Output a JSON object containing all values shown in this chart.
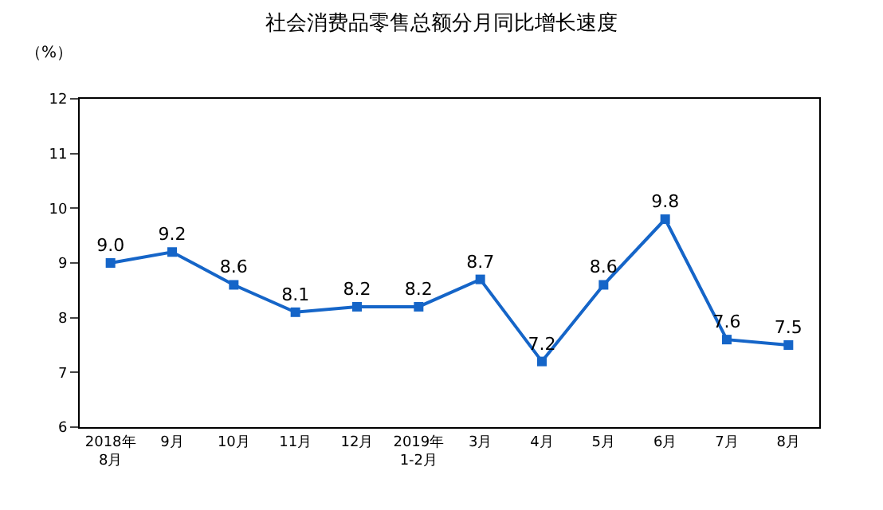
{
  "chart_data": {
    "type": "line",
    "title": "社会消费品零售总额分月同比增长速度",
    "ylabel": "（%）",
    "categories": [
      "2018年\n8月",
      "9月",
      "10月",
      "11月",
      "12月",
      "2019年\n1-2月",
      "3月",
      "4月",
      "5月",
      "6月",
      "7月",
      "8月"
    ],
    "series": [
      {
        "color": "#1565c8",
        "values": [
          9.0,
          9.2,
          8.6,
          8.1,
          8.2,
          8.2,
          8.7,
          7.2,
          8.6,
          9.8,
          7.6,
          7.5
        ],
        "value_labels": [
          "9.0",
          "9.2",
          "8.6",
          "8.1",
          "8.2",
          "8.2",
          "8.7",
          "7.2",
          "8.6",
          "9.8",
          "7.6",
          "7.5"
        ]
      }
    ],
    "ylim": [
      6,
      12
    ],
    "yticks": [
      6,
      7,
      8,
      9,
      10,
      11,
      12
    ],
    "marker": "square",
    "line_style": "solid"
  }
}
